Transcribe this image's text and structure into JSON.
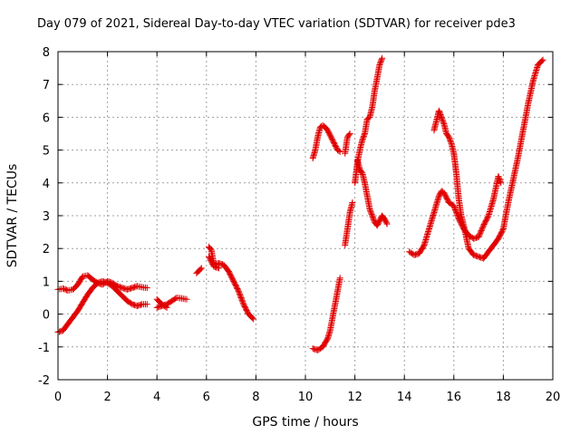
{
  "chart_data": {
    "type": "scatter",
    "title": "Day 079 of 2021, Sidereal Day-to-day VTEC variation (SDTVAR) for receiver pde3",
    "xlabel": "GPS time / hours",
    "ylabel": "SDTVAR / TECUs",
    "xlim": [
      0,
      20
    ],
    "ylim": [
      -2,
      8
    ],
    "xticks": [
      "0",
      "2",
      "4",
      "6",
      "8",
      "10",
      "12",
      "14",
      "16",
      "18",
      "20"
    ],
    "yticks": [
      "-2",
      "-1",
      "0",
      "1",
      "2",
      "3",
      "4",
      "5",
      "6",
      "7",
      "8"
    ],
    "grid": true,
    "marker": "+",
    "color": "#e00000",
    "series": [
      {
        "name": "SDTVAR",
        "segments": [
          [
            [
              0.0,
              -0.55
            ],
            [
              0.2,
              -0.5
            ],
            [
              0.4,
              -0.3
            ],
            [
              0.6,
              -0.1
            ],
            [
              0.8,
              0.1
            ],
            [
              1.0,
              0.35
            ],
            [
              1.2,
              0.6
            ],
            [
              1.4,
              0.8
            ],
            [
              1.6,
              0.95
            ],
            [
              1.8,
              1.0
            ],
            [
              2.0,
              0.95
            ],
            [
              2.2,
              0.85
            ],
            [
              2.4,
              0.7
            ],
            [
              2.6,
              0.55
            ],
            [
              2.8,
              0.4
            ],
            [
              3.0,
              0.3
            ],
            [
              3.2,
              0.25
            ],
            [
              3.4,
              0.3
            ],
            [
              3.6,
              0.3
            ]
          ],
          [
            [
              0.0,
              0.75
            ],
            [
              0.2,
              0.78
            ],
            [
              0.4,
              0.72
            ],
            [
              0.6,
              0.75
            ],
            [
              0.8,
              0.9
            ],
            [
              1.0,
              1.15
            ],
            [
              1.2,
              1.18
            ],
            [
              1.4,
              1.05
            ],
            [
              1.6,
              0.95
            ],
            [
              1.8,
              0.9
            ],
            [
              2.0,
              1.0
            ],
            [
              2.2,
              0.95
            ],
            [
              2.4,
              0.85
            ],
            [
              2.6,
              0.8
            ],
            [
              2.8,
              0.75
            ],
            [
              3.0,
              0.8
            ],
            [
              3.2,
              0.85
            ],
            [
              3.4,
              0.82
            ],
            [
              3.6,
              0.8
            ]
          ],
          [
            [
              4.0,
              0.2
            ],
            [
              4.2,
              0.25
            ],
            [
              4.4,
              0.3
            ],
            [
              4.6,
              0.4
            ],
            [
              4.8,
              0.5
            ],
            [
              5.0,
              0.48
            ],
            [
              5.2,
              0.45
            ]
          ],
          [
            [
              4.0,
              0.45
            ],
            [
              4.2,
              0.3
            ],
            [
              4.4,
              0.2
            ]
          ],
          [
            [
              5.6,
              1.25
            ],
            [
              5.8,
              1.4
            ]
          ],
          [
            [
              6.1,
              2.05
            ],
            [
              6.2,
              1.95
            ],
            [
              6.3,
              1.5
            ],
            [
              6.5,
              1.55
            ],
            [
              6.7,
              1.5
            ],
            [
              6.9,
              1.3
            ],
            [
              7.1,
              1.0
            ],
            [
              7.3,
              0.7
            ],
            [
              7.5,
              0.3
            ],
            [
              7.7,
              0.0
            ],
            [
              7.9,
              -0.15
            ]
          ],
          [
            [
              6.1,
              1.75
            ],
            [
              6.3,
              1.45
            ],
            [
              6.5,
              1.4
            ]
          ],
          [
            [
              10.3,
              -1.05
            ],
            [
              10.5,
              -1.1
            ],
            [
              10.7,
              -1.0
            ],
            [
              10.9,
              -0.75
            ],
            [
              11.0,
              -0.5
            ],
            [
              11.1,
              -0.1
            ],
            [
              11.2,
              0.3
            ],
            [
              11.3,
              0.7
            ],
            [
              11.4,
              1.1
            ]
          ],
          [
            [
              10.3,
              4.75
            ],
            [
              10.4,
              5.0
            ],
            [
              10.5,
              5.4
            ],
            [
              10.6,
              5.7
            ],
            [
              10.7,
              5.75
            ],
            [
              10.8,
              5.7
            ],
            [
              10.9,
              5.6
            ],
            [
              11.0,
              5.45
            ],
            [
              11.1,
              5.3
            ],
            [
              11.2,
              5.15
            ],
            [
              11.3,
              5.0
            ],
            [
              11.4,
              4.95
            ]
          ],
          [
            [
              11.6,
              2.1
            ],
            [
              11.7,
              2.6
            ],
            [
              11.8,
              3.1
            ],
            [
              11.9,
              3.4
            ]
          ],
          [
            [
              11.6,
              4.9
            ],
            [
              11.7,
              5.4
            ],
            [
              11.8,
              5.5
            ]
          ],
          [
            [
              12.0,
              4.0
            ],
            [
              12.1,
              4.6
            ],
            [
              12.2,
              5.0
            ],
            [
              12.3,
              5.3
            ],
            [
              12.4,
              5.5
            ],
            [
              12.5,
              5.95
            ],
            [
              12.6,
              6.0
            ],
            [
              12.7,
              6.3
            ],
            [
              12.8,
              6.8
            ],
            [
              12.9,
              7.2
            ],
            [
              13.0,
              7.6
            ],
            [
              13.1,
              7.8
            ]
          ],
          [
            [
              12.1,
              4.7
            ],
            [
              12.2,
              4.4
            ],
            [
              12.3,
              4.3
            ],
            [
              12.4,
              4.0
            ],
            [
              12.5,
              3.6
            ],
            [
              12.6,
              3.2
            ],
            [
              12.7,
              3.0
            ],
            [
              12.8,
              2.8
            ],
            [
              12.9,
              2.7
            ],
            [
              13.0,
              2.85
            ],
            [
              13.1,
              3.0
            ],
            [
              13.2,
              2.9
            ],
            [
              13.3,
              2.75
            ]
          ],
          [
            [
              14.2,
              1.9
            ],
            [
              14.4,
              1.8
            ],
            [
              14.6,
              1.85
            ],
            [
              14.8,
              2.1
            ],
            [
              15.0,
              2.6
            ],
            [
              15.2,
              3.1
            ],
            [
              15.4,
              3.6
            ],
            [
              15.5,
              3.75
            ],
            [
              15.6,
              3.7
            ],
            [
              15.8,
              3.4
            ],
            [
              16.0,
              3.3
            ],
            [
              16.2,
              2.9
            ],
            [
              16.4,
              2.6
            ],
            [
              16.6,
              2.4
            ],
            [
              16.8,
              2.3
            ],
            [
              17.0,
              2.35
            ],
            [
              17.2,
              2.7
            ],
            [
              17.4,
              3.0
            ],
            [
              17.6,
              3.5
            ],
            [
              17.8,
              4.2
            ],
            [
              17.9,
              4.0
            ]
          ],
          [
            [
              15.2,
              5.6
            ],
            [
              15.3,
              5.9
            ],
            [
              15.4,
              6.2
            ],
            [
              15.5,
              6.0
            ],
            [
              15.6,
              5.8
            ],
            [
              15.7,
              5.5
            ],
            [
              15.8,
              5.4
            ],
            [
              15.9,
              5.2
            ],
            [
              16.0,
              4.9
            ],
            [
              16.1,
              4.3
            ],
            [
              16.2,
              3.5
            ],
            [
              16.3,
              3.0
            ],
            [
              16.4,
              2.7
            ],
            [
              16.6,
              2.0
            ],
            [
              16.8,
              1.8
            ],
            [
              17.0,
              1.75
            ],
            [
              17.2,
              1.7
            ],
            [
              17.4,
              1.9
            ],
            [
              17.6,
              2.1
            ],
            [
              17.8,
              2.3
            ],
            [
              18.0,
              2.6
            ],
            [
              18.1,
              3.0
            ],
            [
              18.2,
              3.4
            ],
            [
              18.4,
              4.1
            ],
            [
              18.6,
              4.8
            ],
            [
              18.8,
              5.6
            ],
            [
              19.0,
              6.4
            ],
            [
              19.2,
              7.1
            ],
            [
              19.4,
              7.6
            ],
            [
              19.6,
              7.75
            ]
          ]
        ]
      }
    ]
  }
}
